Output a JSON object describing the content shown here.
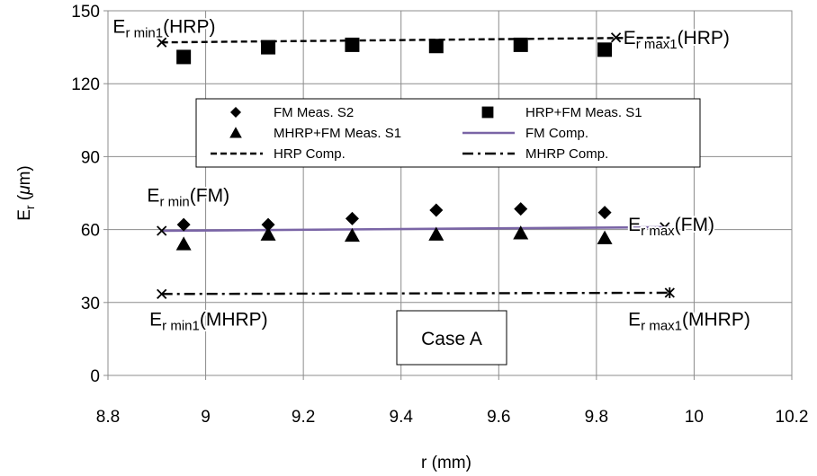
{
  "chart_data": {
    "type": "scatter",
    "xlabel": "r (mm)",
    "ylabel": {
      "main": "E",
      "sub": "r",
      "rest": " (",
      "mu": "μ",
      "unit": "m)"
    },
    "xlim": [
      8.8,
      10.2
    ],
    "ylim": [
      0,
      150
    ],
    "xticks": [
      "8.8",
      "9",
      "9.2",
      "9.4",
      "9.6",
      "9.8",
      "10",
      "10.2"
    ],
    "yticks": [
      "0",
      "30",
      "60",
      "90",
      "120",
      "150"
    ],
    "grid": true,
    "legend_position": "center-top",
    "series": [
      {
        "name": "FM Meas. S2",
        "kind": "marker",
        "marker": "diamond",
        "color": "#000000",
        "x": [
          8.955,
          9.128,
          9.3,
          9.472,
          9.645,
          9.817
        ],
        "y": [
          62,
          62,
          64.5,
          68,
          68.5,
          67
        ]
      },
      {
        "name": "HRP+FM Meas. S1",
        "kind": "marker",
        "marker": "square",
        "color": "#000000",
        "x": [
          8.955,
          9.128,
          9.3,
          9.472,
          9.645,
          9.817
        ],
        "y": [
          131,
          135,
          136,
          135.5,
          136,
          134
        ]
      },
      {
        "name": "MHRP+FM Meas. S1",
        "kind": "marker",
        "marker": "triangle",
        "color": "#000000",
        "x": [
          8.955,
          9.128,
          9.3,
          9.472,
          9.645,
          9.817
        ],
        "y": [
          54,
          58,
          57.5,
          58,
          58.5,
          56.5
        ]
      },
      {
        "name": "FM Comp.",
        "kind": "line",
        "dash": "solid",
        "color": "#7a65a6",
        "x": [
          8.91,
          9.95
        ],
        "y": [
          59.5,
          61
        ]
      },
      {
        "name": "HRP Comp.",
        "kind": "line",
        "dash": "dashed",
        "color": "#000000",
        "x": [
          8.91,
          9.95
        ],
        "y": [
          137,
          139
        ]
      },
      {
        "name": "MHRP Comp.",
        "kind": "line",
        "dash": "dashdot",
        "color": "#000000",
        "x": [
          8.91,
          9.95
        ],
        "y": [
          33.5,
          34
        ]
      }
    ],
    "endpoint_markers": [
      {
        "x": 8.91,
        "y": 137,
        "glyph": "x"
      },
      {
        "x": 9.84,
        "y": 139,
        "glyph": "x"
      },
      {
        "x": 8.91,
        "y": 59.5,
        "glyph": "x"
      },
      {
        "x": 9.94,
        "y": 61,
        "glyph": "x"
      },
      {
        "x": 8.91,
        "y": 33.5,
        "glyph": "x"
      },
      {
        "x": 9.95,
        "y": 34,
        "glyph": "asterisk"
      }
    ],
    "annotations": [
      {
        "main": "E",
        "sub": "r min1",
        "rest": "(HRP)",
        "x": 8.81,
        "y": 143.5
      },
      {
        "main": "E",
        "sub": "r max1",
        "rest": "(HRP)",
        "x": 9.855,
        "y": 139
      },
      {
        "main": "E",
        "sub": "r min",
        "rest": "(FM)",
        "x": 8.88,
        "y": 74
      },
      {
        "main": "E",
        "sub": "r max",
        "rest": "(FM)",
        "x": 9.865,
        "y": 62
      },
      {
        "main": "E",
        "sub": "r min1",
        "rest": "(MHRP)",
        "x": 8.885,
        "y": 23
      },
      {
        "main": "E",
        "sub": "r max1",
        "rest": "(MHRP)",
        "x": 9.865,
        "y": 23
      }
    ],
    "case_label": "Case A"
  }
}
